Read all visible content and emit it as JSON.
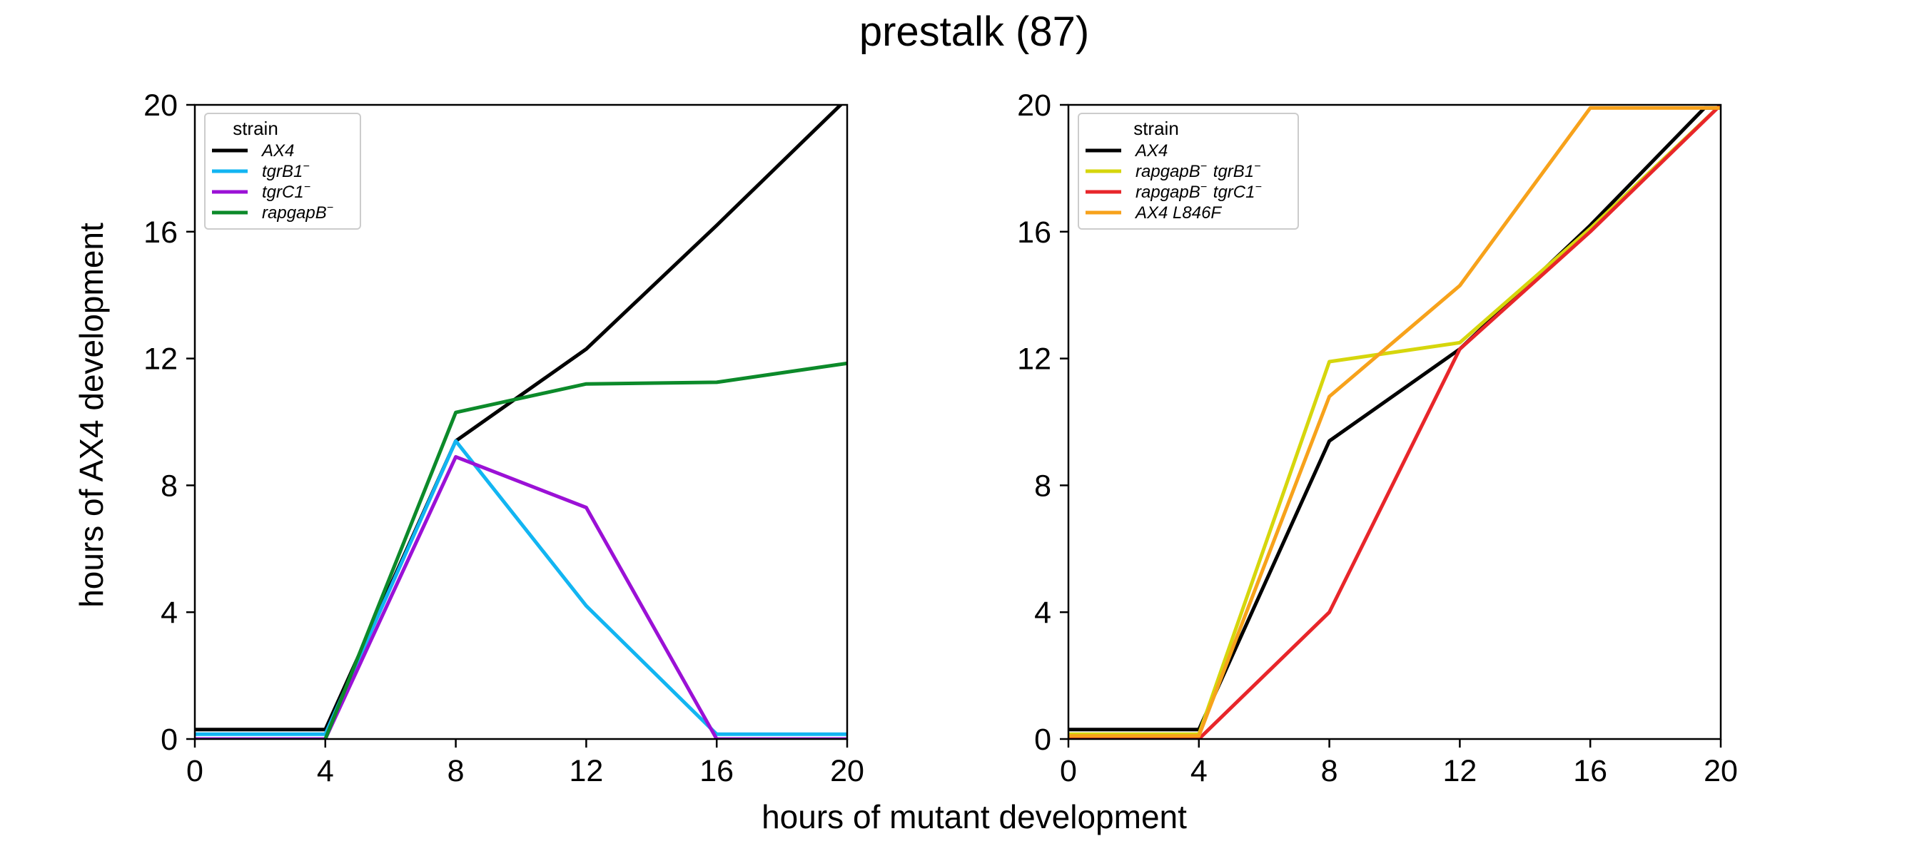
{
  "title": "prestalk (87)",
  "shared_xlabel": "hours of mutant development",
  "shared_ylabel": "hours of AX4 development",
  "colors": {
    "AX4": "#000000",
    "tgrB1": "#12B5F2",
    "tgrC1": "#9B11D6",
    "rapgapB": "#0C8A2A",
    "rapgapB_tgrB1": "#D6D60C",
    "rapgapB_tgrC1": "#E8262A",
    "AX4_L846F": "#F7A21B"
  },
  "chart_data": [
    {
      "type": "line",
      "xlim": [
        0,
        20
      ],
      "ylim": [
        0,
        20
      ],
      "xticks": [
        0,
        4,
        8,
        12,
        16,
        20
      ],
      "yticks": [
        0,
        4,
        8,
        12,
        16,
        20
      ],
      "legend": {
        "title": "strain",
        "placement": "upper-left"
      },
      "series": [
        {
          "key": "AX4",
          "base": "AX4",
          "sup": "",
          "x": [
            0,
            4,
            8,
            12,
            16,
            20
          ],
          "y": [
            0.3,
            0.3,
            9.4,
            12.3,
            16.2,
            20.2
          ]
        },
        {
          "key": "tgrB1",
          "base": "tgrB1",
          "sup": "−",
          "x": [
            0,
            4,
            8,
            12,
            16,
            20
          ],
          "y": [
            0.15,
            0.15,
            9.4,
            4.2,
            0.15,
            0.15
          ]
        },
        {
          "key": "tgrC1",
          "base": "tgrC1",
          "sup": "−",
          "x": [
            0,
            4,
            8,
            12,
            16,
            20
          ],
          "y": [
            0.0,
            0.0,
            8.9,
            7.3,
            0.0,
            0.0
          ]
        },
        {
          "key": "rapgapB",
          "base": "rapgapB",
          "sup": "−",
          "x": [
            4,
            8,
            12,
            16,
            20
          ],
          "y": [
            0.0,
            10.3,
            11.2,
            11.25,
            11.85
          ]
        }
      ]
    },
    {
      "type": "line",
      "xlim": [
        0,
        20
      ],
      "ylim": [
        0,
        20
      ],
      "xticks": [
        0,
        4,
        8,
        12,
        16,
        20
      ],
      "yticks": [
        0,
        4,
        8,
        12,
        16,
        20
      ],
      "legend": {
        "title": "strain",
        "placement": "upper-left"
      },
      "series": [
        {
          "key": "AX4",
          "base": "AX4",
          "sup": "",
          "x": [
            0,
            4,
            8,
            12,
            16,
            19.5,
            20
          ],
          "y": [
            0.3,
            0.3,
            9.4,
            12.3,
            16.2,
            19.9,
            19.9
          ]
        },
        {
          "key": "rapgapB_tgrB1",
          "parts": [
            [
              "rapgapB",
              "−"
            ],
            [
              "tgrB1",
              "−"
            ]
          ],
          "x": [
            0,
            4,
            8,
            12,
            16,
            20
          ],
          "y": [
            0.15,
            0.15,
            11.9,
            12.5,
            16.1,
            20.0
          ]
        },
        {
          "key": "rapgapB_tgrC1",
          "parts": [
            [
              "rapgapB",
              "−"
            ],
            [
              "tgrC1",
              "−"
            ]
          ],
          "x": [
            0,
            4,
            8,
            12,
            16,
            20
          ],
          "y": [
            0.0,
            0.0,
            4.0,
            12.3,
            16.0,
            20.0
          ]
        },
        {
          "key": "AX4_L846F",
          "base": "AX4 L846F",
          "sup": "",
          "x": [
            0,
            4,
            8,
            12,
            16,
            20
          ],
          "y": [
            0.1,
            0.1,
            10.8,
            14.3,
            19.9,
            19.9
          ]
        }
      ]
    }
  ]
}
